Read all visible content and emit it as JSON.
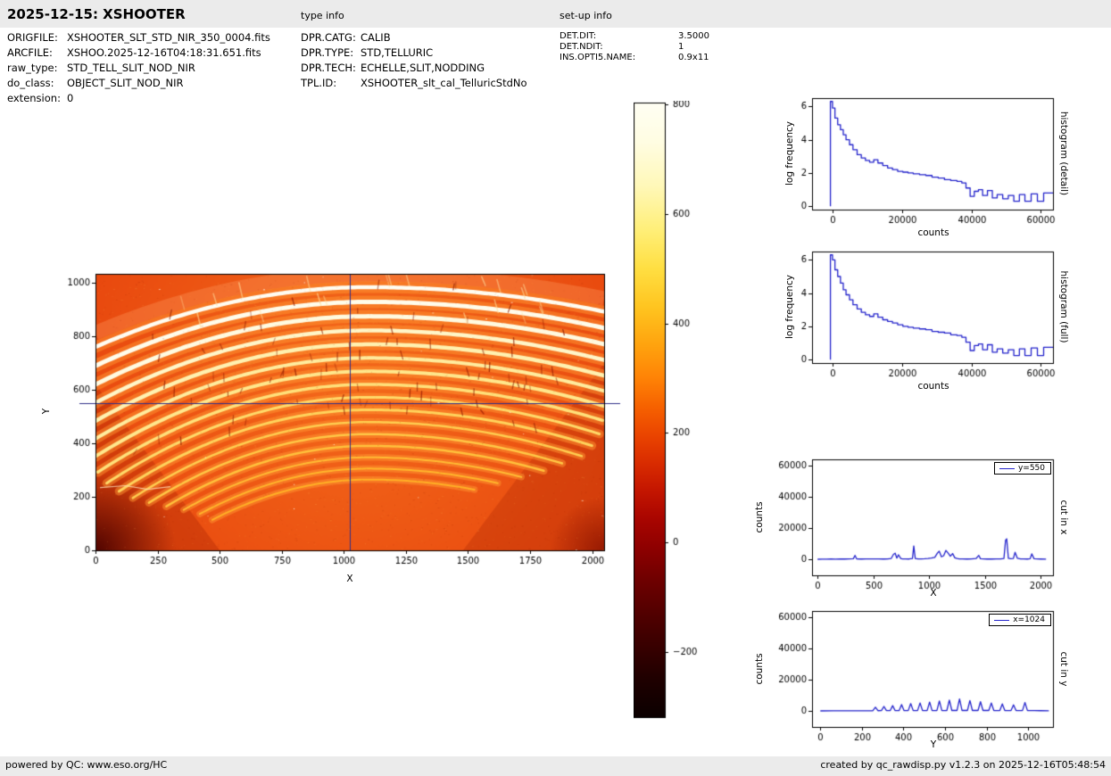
{
  "header": {
    "title": "2025-12-15: XSHOOTER",
    "type_info_label": "type info",
    "setup_info_label": "set-up info"
  },
  "file_info": {
    "rows": [
      {
        "label": "ORIGFILE:",
        "value": "XSHOOTER_SLT_STD_NIR_350_0004.fits"
      },
      {
        "label": "ARCFILE:",
        "value": "XSHOO.2025-12-16T04:18:31.651.fits"
      },
      {
        "label": "raw_type:",
        "value": "STD_TELL_SLIT_NOD_NIR"
      },
      {
        "label": "do_class:",
        "value": "OBJECT_SLIT_NOD_NIR"
      },
      {
        "label": "extension:",
        "value": "0"
      }
    ]
  },
  "type_info": {
    "rows": [
      {
        "label": "DPR.CATG:",
        "value": "CALIB"
      },
      {
        "label": "DPR.TYPE:",
        "value": "STD,TELLURIC"
      },
      {
        "label": "DPR.TECH:",
        "value": "ECHELLE,SLIT,NODDING"
      },
      {
        "label": "TPL.ID:",
        "value": "XSHOOTER_slt_cal_TelluricStdNo"
      }
    ]
  },
  "setup_info": {
    "rows": [
      {
        "label": "DET.DIT:",
        "value": "3.5000"
      },
      {
        "label": "DET.NDIT:",
        "value": "1"
      },
      {
        "label": "INS.OPTI5.NAME:",
        "value": "0.9x11"
      }
    ]
  },
  "footer": {
    "left": "powered by QC: www.eso.org/HC",
    "right": "created by qc_rawdisp.py v1.2.3 on 2025-12-16T05:48:54"
  },
  "chart_data": [
    {
      "type": "heatmap",
      "name": "raw NIR echelle frame with curved spectral orders",
      "xlabel": "X",
      "ylabel": "Y",
      "xlim": [
        0,
        2048
      ],
      "ylim": [
        0,
        1035
      ],
      "xticks": [
        0,
        250,
        500,
        750,
        1000,
        1250,
        1500,
        1750,
        2000
      ],
      "yticks": [
        0,
        200,
        400,
        600,
        800,
        1000
      ],
      "crosshair": {
        "x": 1024,
        "y": 550
      },
      "crosshair_color": "#30308a",
      "background_color": "#e8470e",
      "peak_x": 1100,
      "k_right_factor": 0.55,
      "top_band": {
        "py": 1032,
        "k": 0.00018,
        "w": 16,
        "col": "rgba(255,160,100,0.32)"
      },
      "orders": [
        {
          "py": 985,
          "k": 0.000185,
          "x0": 0,
          "x1": 2048,
          "w": 4.5,
          "col": "#fffdf2"
        },
        {
          "py": 930,
          "k": 0.000198,
          "x0": 0,
          "x1": 2048,
          "w": 5,
          "col": "#fffceb"
        },
        {
          "py": 876,
          "k": 0.000211,
          "x0": 0,
          "x1": 2048,
          "w": 5,
          "col": "#fffae0"
        },
        {
          "py": 823,
          "k": 0.000224,
          "x0": 0,
          "x1": 2048,
          "w": 4.5,
          "col": "#fff6c8"
        },
        {
          "py": 771,
          "k": 0.000237,
          "x0": 0,
          "x1": 2048,
          "w": 4.5,
          "col": "#fff1b0"
        },
        {
          "py": 720,
          "k": 0.00025,
          "x0": 0,
          "x1": 2048,
          "w": 4,
          "col": "#ffec9e"
        },
        {
          "py": 670,
          "k": 0.000263,
          "x0": 0,
          "x1": 2048,
          "w": 4,
          "col": "#ffe78c"
        },
        {
          "py": 621,
          "k": 0.000276,
          "x0": 10,
          "x1": 2048,
          "w": 3.5,
          "col": "#ffe07a"
        },
        {
          "py": 573,
          "k": 0.000289,
          "x0": 45,
          "x1": 2040,
          "w": 3,
          "col": "#ffda6a"
        },
        {
          "py": 526,
          "k": 0.000302,
          "x0": 95,
          "x1": 2010,
          "w": 3,
          "col": "#ffd35c"
        },
        {
          "py": 480,
          "k": 0.000315,
          "x0": 150,
          "x1": 1960,
          "w": 2.5,
          "col": "#ffcd50"
        },
        {
          "py": 435,
          "k": 0.000328,
          "x0": 215,
          "x1": 1890,
          "w": 2.5,
          "col": "#ffc746"
        },
        {
          "py": 391,
          "k": 0.000341,
          "x0": 285,
          "x1": 1810,
          "w": 2.5,
          "col": "#ffc13c"
        },
        {
          "py": 348,
          "k": 0.000354,
          "x0": 355,
          "x1": 1720,
          "w": 2,
          "col": "#ffbb34"
        },
        {
          "py": 306,
          "k": 0.000367,
          "x0": 420,
          "x1": 1630,
          "w": 2,
          "col": "#ffb52c"
        },
        {
          "py": 265,
          "k": 0.00038,
          "x0": 470,
          "x1": 1540,
          "w": 2,
          "col": "#ffb026"
        }
      ]
    },
    {
      "type": "colorbar",
      "vmin": -320,
      "vmax": 803,
      "ticks": [
        800,
        600,
        400,
        200,
        0,
        -200
      ],
      "stops": [
        {
          "v": 803,
          "c": "#fffff4"
        },
        {
          "v": 730,
          "c": "#fffde2"
        },
        {
          "v": 650,
          "c": "#fff8b8"
        },
        {
          "v": 570,
          "c": "#ffef78"
        },
        {
          "v": 500,
          "c": "#ffdf42"
        },
        {
          "v": 430,
          "c": "#ffc520"
        },
        {
          "v": 360,
          "c": "#ffa30e"
        },
        {
          "v": 300,
          "c": "#ff8306"
        },
        {
          "v": 245,
          "c": "#f66000"
        },
        {
          "v": 195,
          "c": "#ea4400"
        },
        {
          "v": 145,
          "c": "#d92c00"
        },
        {
          "v": 95,
          "c": "#c41600"
        },
        {
          "v": 45,
          "c": "#aa0600"
        },
        {
          "v": -10,
          "c": "#8e0000"
        },
        {
          "v": -70,
          "c": "#6e0000"
        },
        {
          "v": -130,
          "c": "#520000"
        },
        {
          "v": -190,
          "c": "#380000"
        },
        {
          "v": -250,
          "c": "#1f0000"
        },
        {
          "v": -320,
          "c": "#0b0000"
        }
      ]
    },
    {
      "type": "line",
      "subtype": "step",
      "side_label": "histogram (detail)",
      "xlabel": "counts",
      "ylabel": "log frequency",
      "xlim": [
        -6000,
        63500
      ],
      "ylim": [
        -0.2,
        6.5
      ],
      "xticks": [
        0,
        20000,
        40000,
        60000
      ],
      "yticks": [
        0,
        2,
        4,
        6
      ],
      "line_color": "#2424cc",
      "x": [
        -700,
        -100,
        600,
        1400,
        2200,
        3000,
        3800,
        4800,
        5800,
        7000,
        8200,
        9400,
        10600,
        11800,
        13000,
        14400,
        15800,
        17200,
        18700,
        20200,
        21700,
        23200,
        25000,
        26800,
        28600,
        30400,
        32200,
        34000,
        35800,
        37200,
        38400,
        39600,
        40800,
        42000,
        43200,
        44600,
        46000,
        47400,
        49000,
        50600,
        52200,
        53800,
        55400,
        57200,
        59000,
        60800,
        62600
      ],
      "y": [
        6.3,
        5.9,
        5.3,
        4.9,
        4.6,
        4.3,
        4.0,
        3.7,
        3.4,
        3.1,
        2.9,
        2.75,
        2.65,
        2.8,
        2.6,
        2.45,
        2.3,
        2.2,
        2.1,
        2.05,
        2.0,
        1.95,
        1.9,
        1.85,
        1.75,
        1.7,
        1.6,
        1.55,
        1.5,
        1.4,
        1.1,
        0.6,
        0.9,
        1.0,
        0.65,
        0.95,
        0.5,
        0.7,
        0.45,
        0.65,
        0.3,
        0.7,
        0.3,
        0.75,
        0.3,
        0.8,
        0.8
      ]
    },
    {
      "type": "line",
      "subtype": "step",
      "side_label": "histogram (full)",
      "xlabel": "counts",
      "ylabel": "log frequency",
      "xlim": [
        -6000,
        63500
      ],
      "ylim": [
        -0.2,
        6.5
      ],
      "xticks": [
        0,
        20000,
        40000,
        60000
      ],
      "yticks": [
        0,
        2,
        4,
        6
      ],
      "line_color": "#2424cc",
      "x": [
        -700,
        -100,
        600,
        1400,
        2200,
        3000,
        3800,
        4800,
        5800,
        7000,
        8200,
        9400,
        10600,
        11800,
        13000,
        14400,
        15800,
        17200,
        18700,
        20200,
        21700,
        23200,
        25000,
        26800,
        28600,
        30400,
        32200,
        34000,
        35800,
        37200,
        38400,
        39600,
        40800,
        42000,
        43200,
        44600,
        46000,
        47400,
        49000,
        50600,
        52200,
        53800,
        55400,
        57200,
        59000,
        60800,
        62600
      ],
      "y": [
        6.3,
        6.0,
        5.4,
        5.0,
        4.6,
        4.2,
        3.9,
        3.6,
        3.3,
        3.05,
        2.85,
        2.7,
        2.6,
        2.75,
        2.55,
        2.4,
        2.3,
        2.2,
        2.1,
        2.0,
        1.95,
        1.9,
        1.85,
        1.8,
        1.7,
        1.65,
        1.6,
        1.5,
        1.45,
        1.35,
        1.05,
        0.55,
        0.85,
        0.95,
        0.6,
        0.9,
        0.45,
        0.65,
        0.4,
        0.6,
        0.25,
        0.65,
        0.25,
        0.7,
        0.25,
        0.75,
        0.75
      ]
    },
    {
      "type": "line",
      "subtype": "plain",
      "side_label": "cut in x",
      "legend": "y=550",
      "xlabel": "X",
      "ylabel": "counts",
      "xlim": [
        -50,
        2110
      ],
      "ylim": [
        -10000,
        64000
      ],
      "xticks": [
        0,
        500,
        1000,
        1500,
        2000
      ],
      "yticks": [
        0,
        20000,
        40000,
        60000
      ],
      "line_color": "#2424cc",
      "x": [
        0,
        40,
        80,
        120,
        160,
        200,
        240,
        280,
        320,
        335,
        350,
        390,
        430,
        470,
        510,
        550,
        590,
        630,
        660,
        680,
        695,
        710,
        725,
        745,
        760,
        790,
        820,
        850,
        862,
        875,
        900,
        930,
        960,
        990,
        1020,
        1050,
        1075,
        1090,
        1110,
        1130,
        1150,
        1170,
        1190,
        1210,
        1230,
        1250,
        1270,
        1300,
        1340,
        1380,
        1420,
        1445,
        1460,
        1490,
        1520,
        1560,
        1600,
        1640,
        1670,
        1685,
        1695,
        1710,
        1730,
        1755,
        1770,
        1790,
        1820,
        1850,
        1880,
        1905,
        1920,
        1940,
        1970,
        2000,
        2048
      ],
      "y": [
        250,
        350,
        300,
        420,
        350,
        400,
        380,
        450,
        600,
        2700,
        500,
        400,
        450,
        500,
        420,
        480,
        400,
        500,
        800,
        3400,
        4100,
        1000,
        3100,
        700,
        500,
        450,
        400,
        700,
        8700,
        800,
        500,
        450,
        550,
        700,
        1000,
        1500,
        4300,
        5400,
        1800,
        2500,
        5900,
        4200,
        2200,
        3900,
        1200,
        700,
        500,
        450,
        400,
        500,
        700,
        2700,
        600,
        450,
        400,
        380,
        420,
        500,
        700,
        12400,
        13300,
        900,
        600,
        700,
        4700,
        900,
        500,
        450,
        400,
        600,
        3700,
        600,
        450,
        400,
        350
      ]
    },
    {
      "type": "line",
      "subtype": "plain",
      "side_label": "cut in y",
      "legend": "x=1024",
      "xlabel": "Y",
      "ylabel": "counts",
      "xlim": [
        -40,
        1120
      ],
      "ylim": [
        -10000,
        64000
      ],
      "xticks": [
        0,
        200,
        400,
        600,
        800,
        1000
      ],
      "yticks": [
        0,
        20000,
        40000,
        60000
      ],
      "line_color": "#2424cc",
      "x": [
        0,
        60,
        120,
        200,
        253,
        265,
        277,
        294,
        306,
        318,
        336,
        348,
        360,
        379,
        391,
        403,
        423,
        435,
        447,
        468,
        480,
        492,
        514,
        526,
        538,
        561,
        573,
        585,
        609,
        621,
        633,
        658,
        670,
        682,
        708,
        720,
        732,
        759,
        771,
        783,
        811,
        823,
        835,
        864,
        876,
        888,
        918,
        930,
        942,
        973,
        985,
        997,
        1030,
        1060,
        1100
      ],
      "y": [
        250,
        280,
        300,
        350,
        400,
        2600,
        400,
        420,
        3100,
        420,
        430,
        3600,
        430,
        450,
        4300,
        450,
        460,
        4900,
        460,
        470,
        5300,
        470,
        480,
        5900,
        480,
        500,
        6600,
        500,
        520,
        7100,
        520,
        540,
        7900,
        540,
        540,
        6900,
        540,
        540,
        6100,
        540,
        520,
        5300,
        520,
        500,
        4700,
        500,
        480,
        4100,
        480,
        460,
        5600,
        460,
        420,
        380,
        350
      ]
    }
  ]
}
